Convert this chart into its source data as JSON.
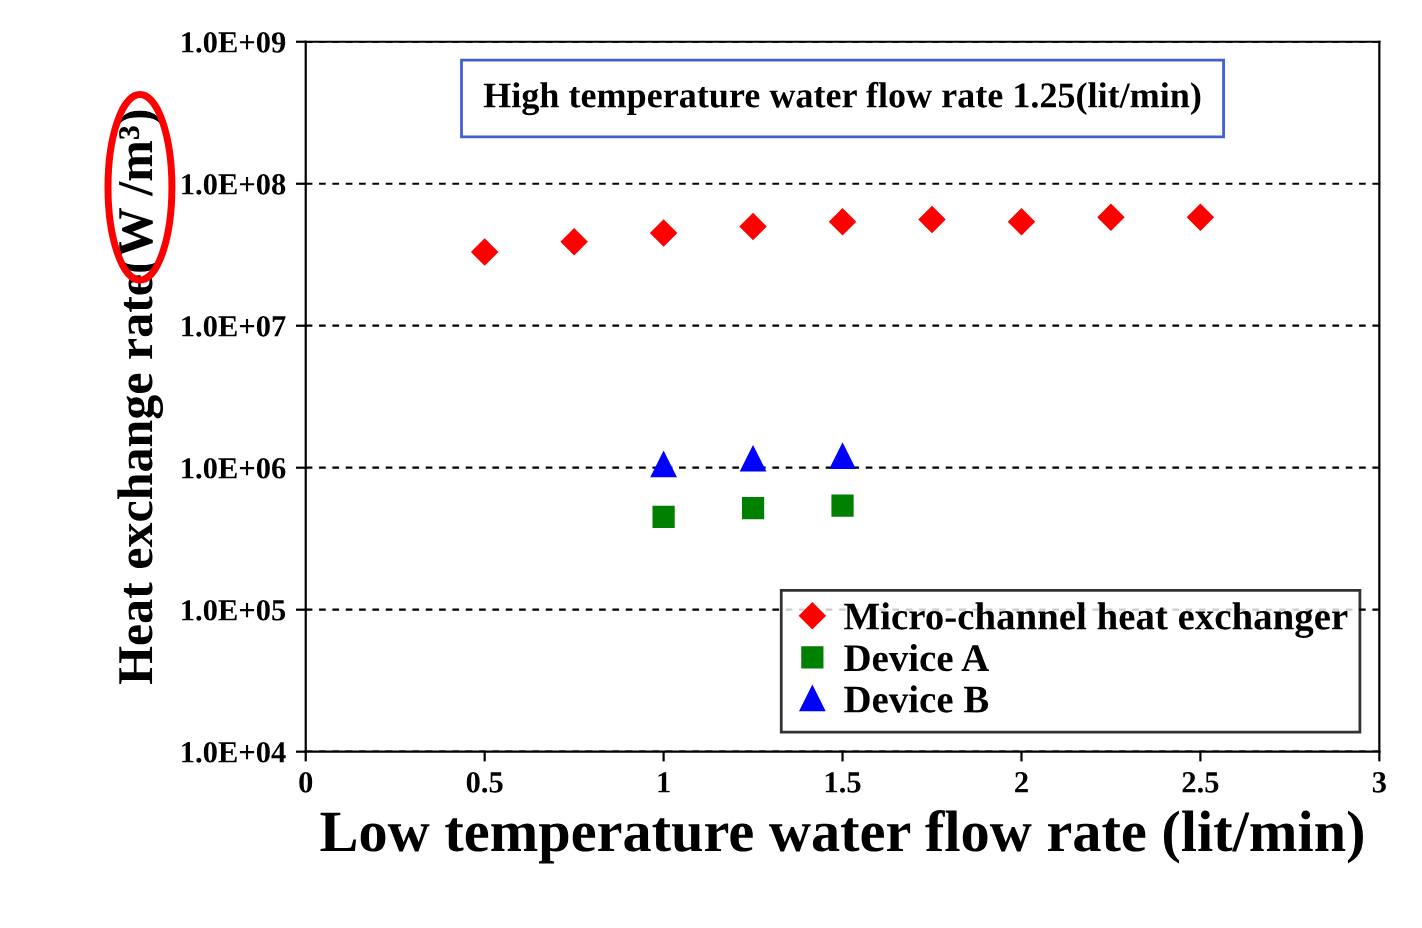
{
  "chart_data": {
    "type": "scatter",
    "title": "High temperature water flow rate 1.25(lit/min)",
    "xlabel": "Low temperature water flow rate (lit/min)",
    "ylabel": "Heat exchange rate(W /m³)",
    "series": [
      {
        "name": "Micro-channel heat exchanger",
        "color": "#ff0000",
        "marker": "diamond",
        "x": [
          0.5,
          0.75,
          1,
          1.25,
          1.5,
          1.75,
          2,
          2.25,
          2.5
        ],
        "values": [
          33000000,
          39000000,
          45000000,
          50000000,
          54000000,
          56000000,
          54000000,
          58000000,
          58000000
        ]
      },
      {
        "name": "Device A",
        "color": "#008000",
        "marker": "square",
        "x": [
          1,
          1.25,
          1.5
        ],
        "values": [
          450000,
          520000,
          540000
        ]
      },
      {
        "name": "Device B",
        "color": "#0000ff",
        "marker": "triangle",
        "x": [
          1,
          1.25,
          1.5
        ],
        "values": [
          1050000,
          1150000,
          1200000
        ]
      }
    ],
    "log": "y",
    "xlim": [
      0,
      3
    ],
    "xticks": [
      0,
      0.5,
      1,
      1.5,
      2,
      2.5,
      3
    ],
    "ylim": [
      10000,
      1000000000
    ],
    "yticks": [
      {
        "value": 10000,
        "label": "1.0E+04"
      },
      {
        "value": 100000,
        "label": "1.0E+05"
      },
      {
        "value": 1000000,
        "label": "1.0E+06"
      },
      {
        "value": 10000000,
        "label": "1.0E+07"
      },
      {
        "value": 100000000,
        "label": "1.0E+08"
      },
      {
        "value": 1000000000,
        "label": "1.0E+09"
      }
    ],
    "grid": "y",
    "legend": "bottom right"
  }
}
